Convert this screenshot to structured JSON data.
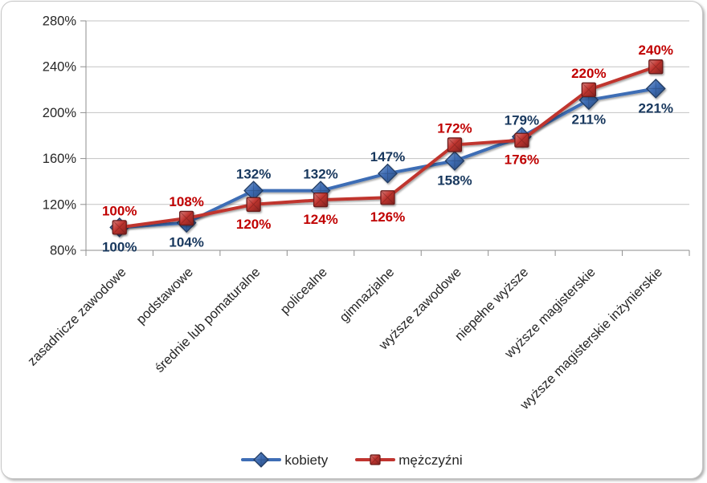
{
  "chart_data": {
    "type": "line",
    "title": "",
    "xlabel": "",
    "ylabel": "",
    "categories": [
      "zasadnicze zawodowe",
      "podstawowe",
      "średnie lub pomaturalne",
      "policealne",
      "gimnazjalne",
      "wyższe zawodowe",
      "niepełne wyższe",
      "wyższe magisterskie",
      "wyższe magisterskie inżynierskie"
    ],
    "series": [
      {
        "name": "kobiety",
        "values": [
          100,
          104,
          132,
          132,
          147,
          158,
          179,
          211,
          221
        ],
        "data_labels": [
          "100%",
          "104%",
          "132%",
          "132%",
          "147%",
          "158%",
          "179%",
          "211%",
          "221%"
        ],
        "label_positions": [
          "below",
          "below",
          "above",
          "above",
          "above",
          "below",
          "above",
          "below",
          "below"
        ],
        "color": "#3E6DB5",
        "label_color": "#17375D",
        "marker": "diamond"
      },
      {
        "name": "mężczyźni",
        "values": [
          100,
          108,
          120,
          124,
          126,
          172,
          176,
          220,
          240
        ],
        "data_labels": [
          "100%",
          "108%",
          "120%",
          "124%",
          "126%",
          "172%",
          "176%",
          "220%",
          "240%"
        ],
        "label_positions": [
          "above",
          "above",
          "below",
          "below",
          "below",
          "above",
          "below",
          "above",
          "above"
        ],
        "color": "#C0342F",
        "label_color": "#C00000",
        "marker": "square"
      }
    ],
    "ylim": [
      80,
      280
    ],
    "ytick_step": 40,
    "ytick_labels": [
      "80%",
      "120%",
      "160%",
      "200%",
      "240%",
      "280%"
    ],
    "grid": true,
    "legend_position": "bottom",
    "colors": {
      "gridline": "#c3c3c3",
      "axis": "#8e8e8e",
      "tick_label": "#262626",
      "background": "#ffffff",
      "frame_border": "#c6c6c6"
    }
  },
  "legend": {
    "items": [
      {
        "label": "kobiety"
      },
      {
        "label": "mężczyźni"
      }
    ]
  }
}
